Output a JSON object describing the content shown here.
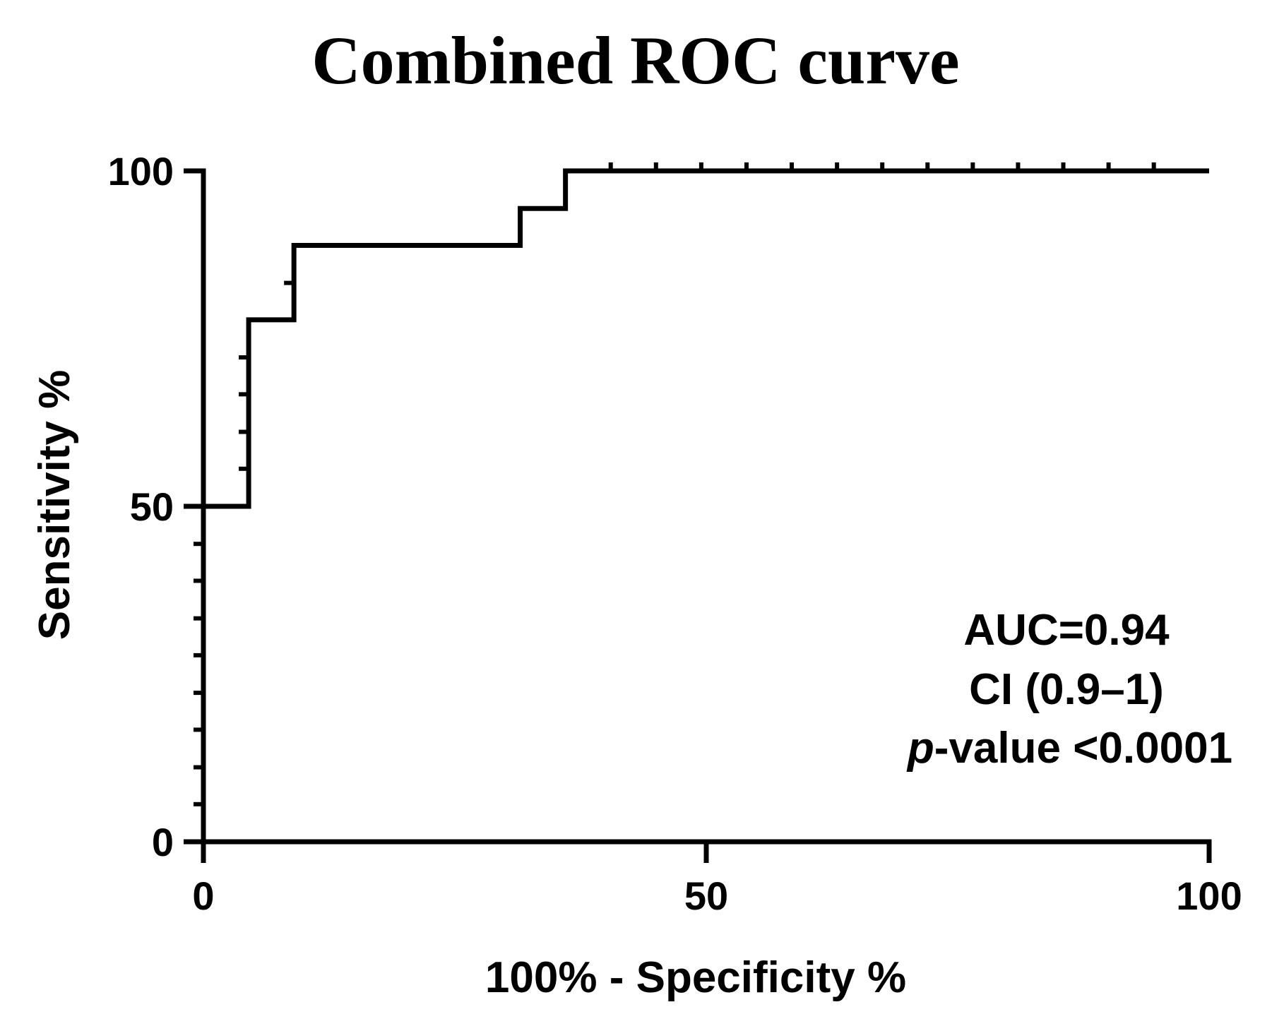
{
  "chart_data": {
    "type": "line",
    "title": "Combined ROC curve",
    "xlabel": "100% - Specificity %",
    "ylabel": "Sensitivity %",
    "xlim": [
      0,
      100
    ],
    "ylim": [
      0,
      100
    ],
    "x_ticks": [
      "0",
      "50",
      "100"
    ],
    "y_ticks": [
      "0",
      "50",
      "100"
    ],
    "grid": false,
    "series": [
      {
        "step": true,
        "x": [
          0,
          4.5,
          4.5,
          9,
          9,
          31.5,
          31.5,
          36,
          36,
          100
        ],
        "y": [
          50,
          50,
          77.8,
          77.8,
          88.9,
          88.9,
          94.4,
          94.4,
          100,
          100
        ],
        "color": "#000000"
      }
    ],
    "threshold_markers": [
      {
        "x": 4.5,
        "y": [
          55.6,
          61.1,
          66.7,
          72.2
        ]
      },
      {
        "x": 9,
        "y": [
          83.3
        ]
      },
      {
        "x": 0,
        "y": [
          0,
          5.6,
          11.1,
          16.7,
          22.2,
          27.8,
          33.3,
          38.9,
          44.4
        ]
      },
      {
        "y": 100,
        "x": [
          40.5,
          45,
          49.5,
          54,
          58.5,
          63,
          67.5,
          72,
          76.5,
          81,
          85.5,
          90,
          94.5
        ]
      }
    ],
    "annotations": {
      "auc": "AUC=0.94",
      "ci": "CI (0.9–1)",
      "p_prefix": "p",
      "p_rest": "-value <0.0001"
    }
  }
}
